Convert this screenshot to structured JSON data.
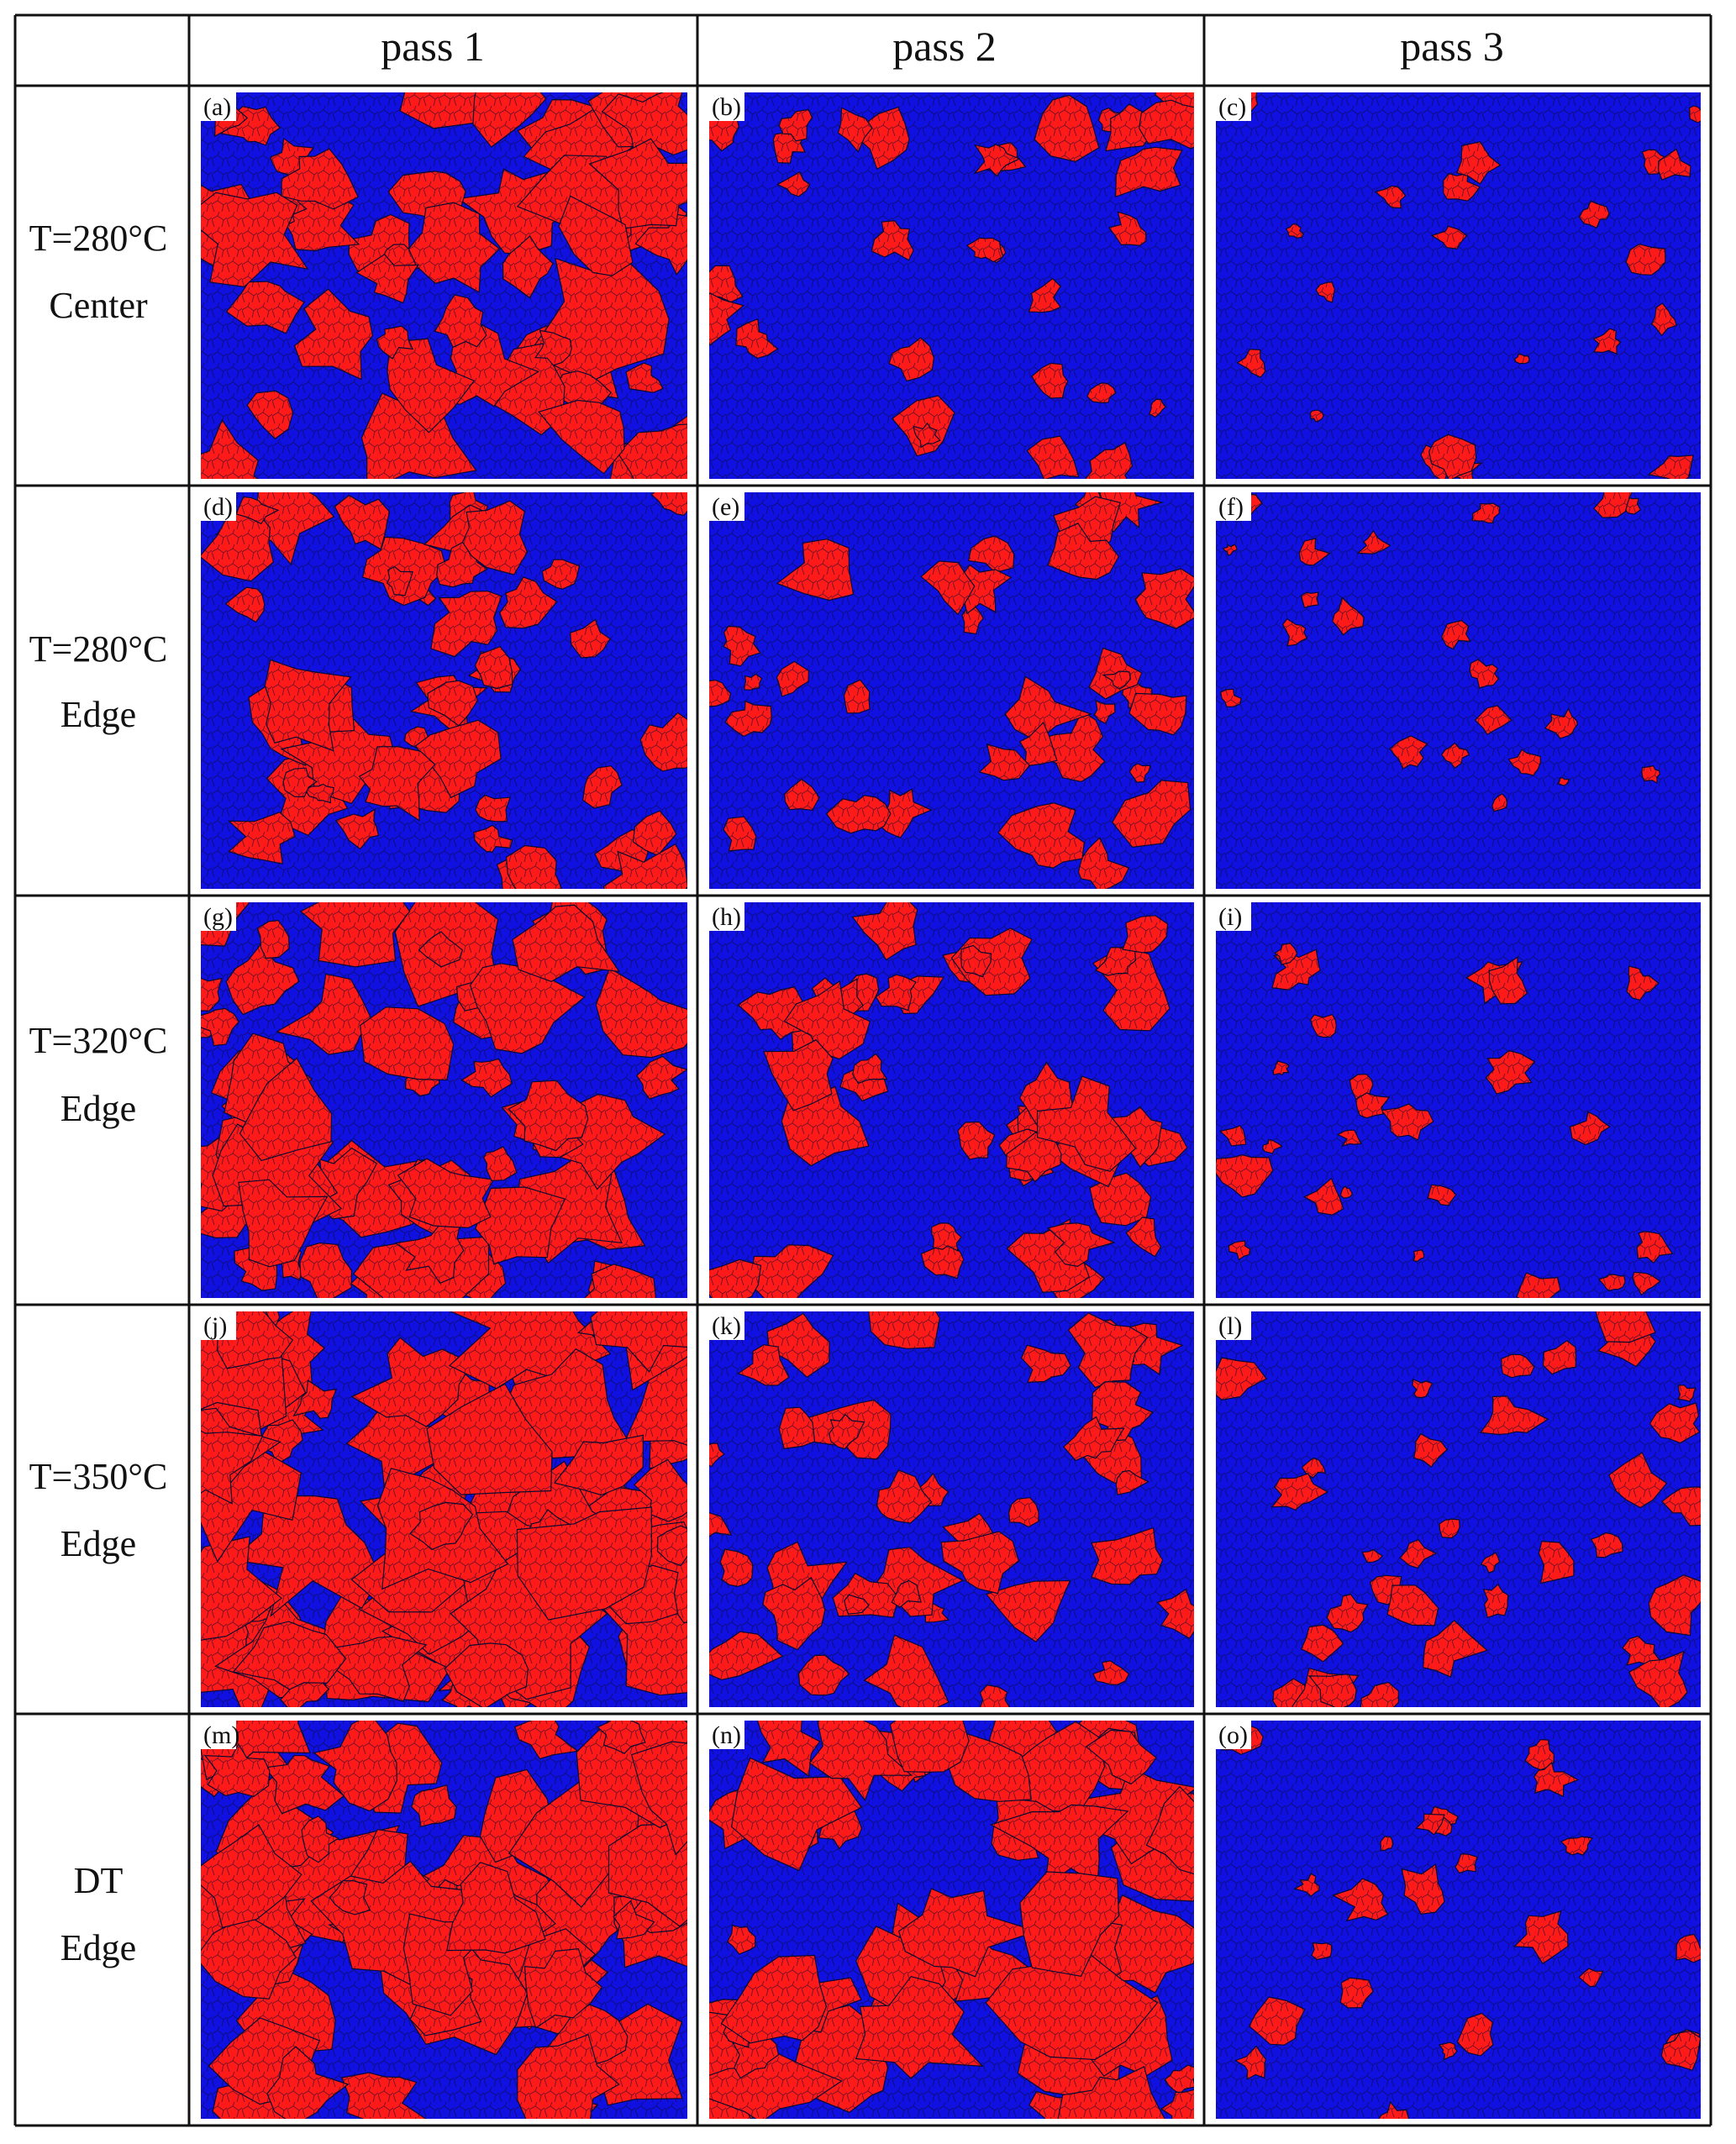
{
  "table": {
    "columns": [
      "pass 1",
      "pass 2",
      "pass 3"
    ],
    "rows": [
      {
        "line1": "T=280°C",
        "line2": "Center",
        "panels": [
          "(a)",
          "(b)",
          "(c)"
        ]
      },
      {
        "line1": "T=280°C",
        "line2": "Edge",
        "panels": [
          "(d)",
          "(e)",
          "(f)"
        ]
      },
      {
        "line1": "T=320°C",
        "line2": "Edge",
        "panels": [
          "(g)",
          "(h)",
          "(i)"
        ]
      },
      {
        "line1": "T=350°C",
        "line2": "Edge",
        "panels": [
          "(j)",
          "(k)",
          "(l)"
        ]
      },
      {
        "line1": "DT",
        "line2": "Edge",
        "panels": [
          "(m)",
          "(n)",
          "(o)"
        ]
      }
    ]
  },
  "colors": {
    "matrix": "#1010e0",
    "phase": "#ff1a1a",
    "grain_boundary": "#0a0a30",
    "grid": "#111111"
  },
  "panel_phase_density": [
    [
      0.45,
      0.18,
      0.06
    ],
    [
      0.35,
      0.22,
      0.04
    ],
    [
      0.45,
      0.28,
      0.1
    ],
    [
      0.62,
      0.28,
      0.22
    ],
    [
      0.55,
      0.45,
      0.12
    ]
  ]
}
